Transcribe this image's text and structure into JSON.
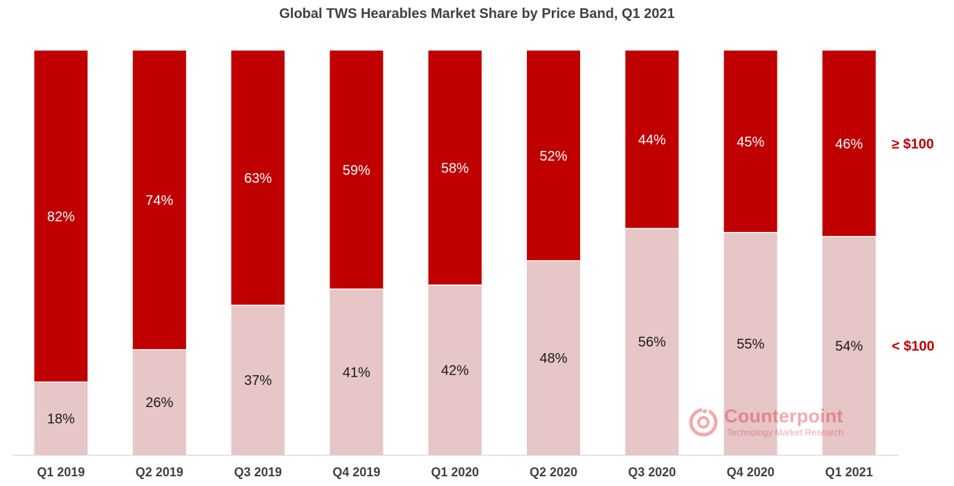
{
  "chart_data": {
    "type": "bar",
    "stacked": true,
    "title": "Global TWS Hearables Market Share by Price Band, Q1 2021",
    "categories": [
      "Q1 2019",
      "Q2 2019",
      "Q3 2019",
      "Q4 2019",
      "Q1 2020",
      "Q2 2020",
      "Q3 2020",
      "Q4 2020",
      "Q1 2021"
    ],
    "series": [
      {
        "name": "< $100",
        "color": "#e6c6c6",
        "values": [
          18,
          26,
          37,
          41,
          42,
          48,
          56,
          55,
          54
        ],
        "labels": [
          "18%",
          "26%",
          "37%",
          "41%",
          "42%",
          "48%",
          "56%",
          "55%",
          "54%"
        ]
      },
      {
        "name": "≥ $100",
        "color": "#c00000",
        "values": [
          82,
          74,
          63,
          59,
          58,
          52,
          44,
          45,
          46
        ],
        "labels": [
          "82%",
          "74%",
          "63%",
          "59%",
          "58%",
          "52%",
          "44%",
          "45%",
          "46%"
        ]
      }
    ],
    "ylim": [
      0,
      100
    ],
    "legend": "right",
    "grid": false,
    "xlabel": "",
    "ylabel": ""
  },
  "watermark": {
    "name": "Counterpoint",
    "tagline": "Technology Market Research",
    "color": "#e0202a"
  }
}
